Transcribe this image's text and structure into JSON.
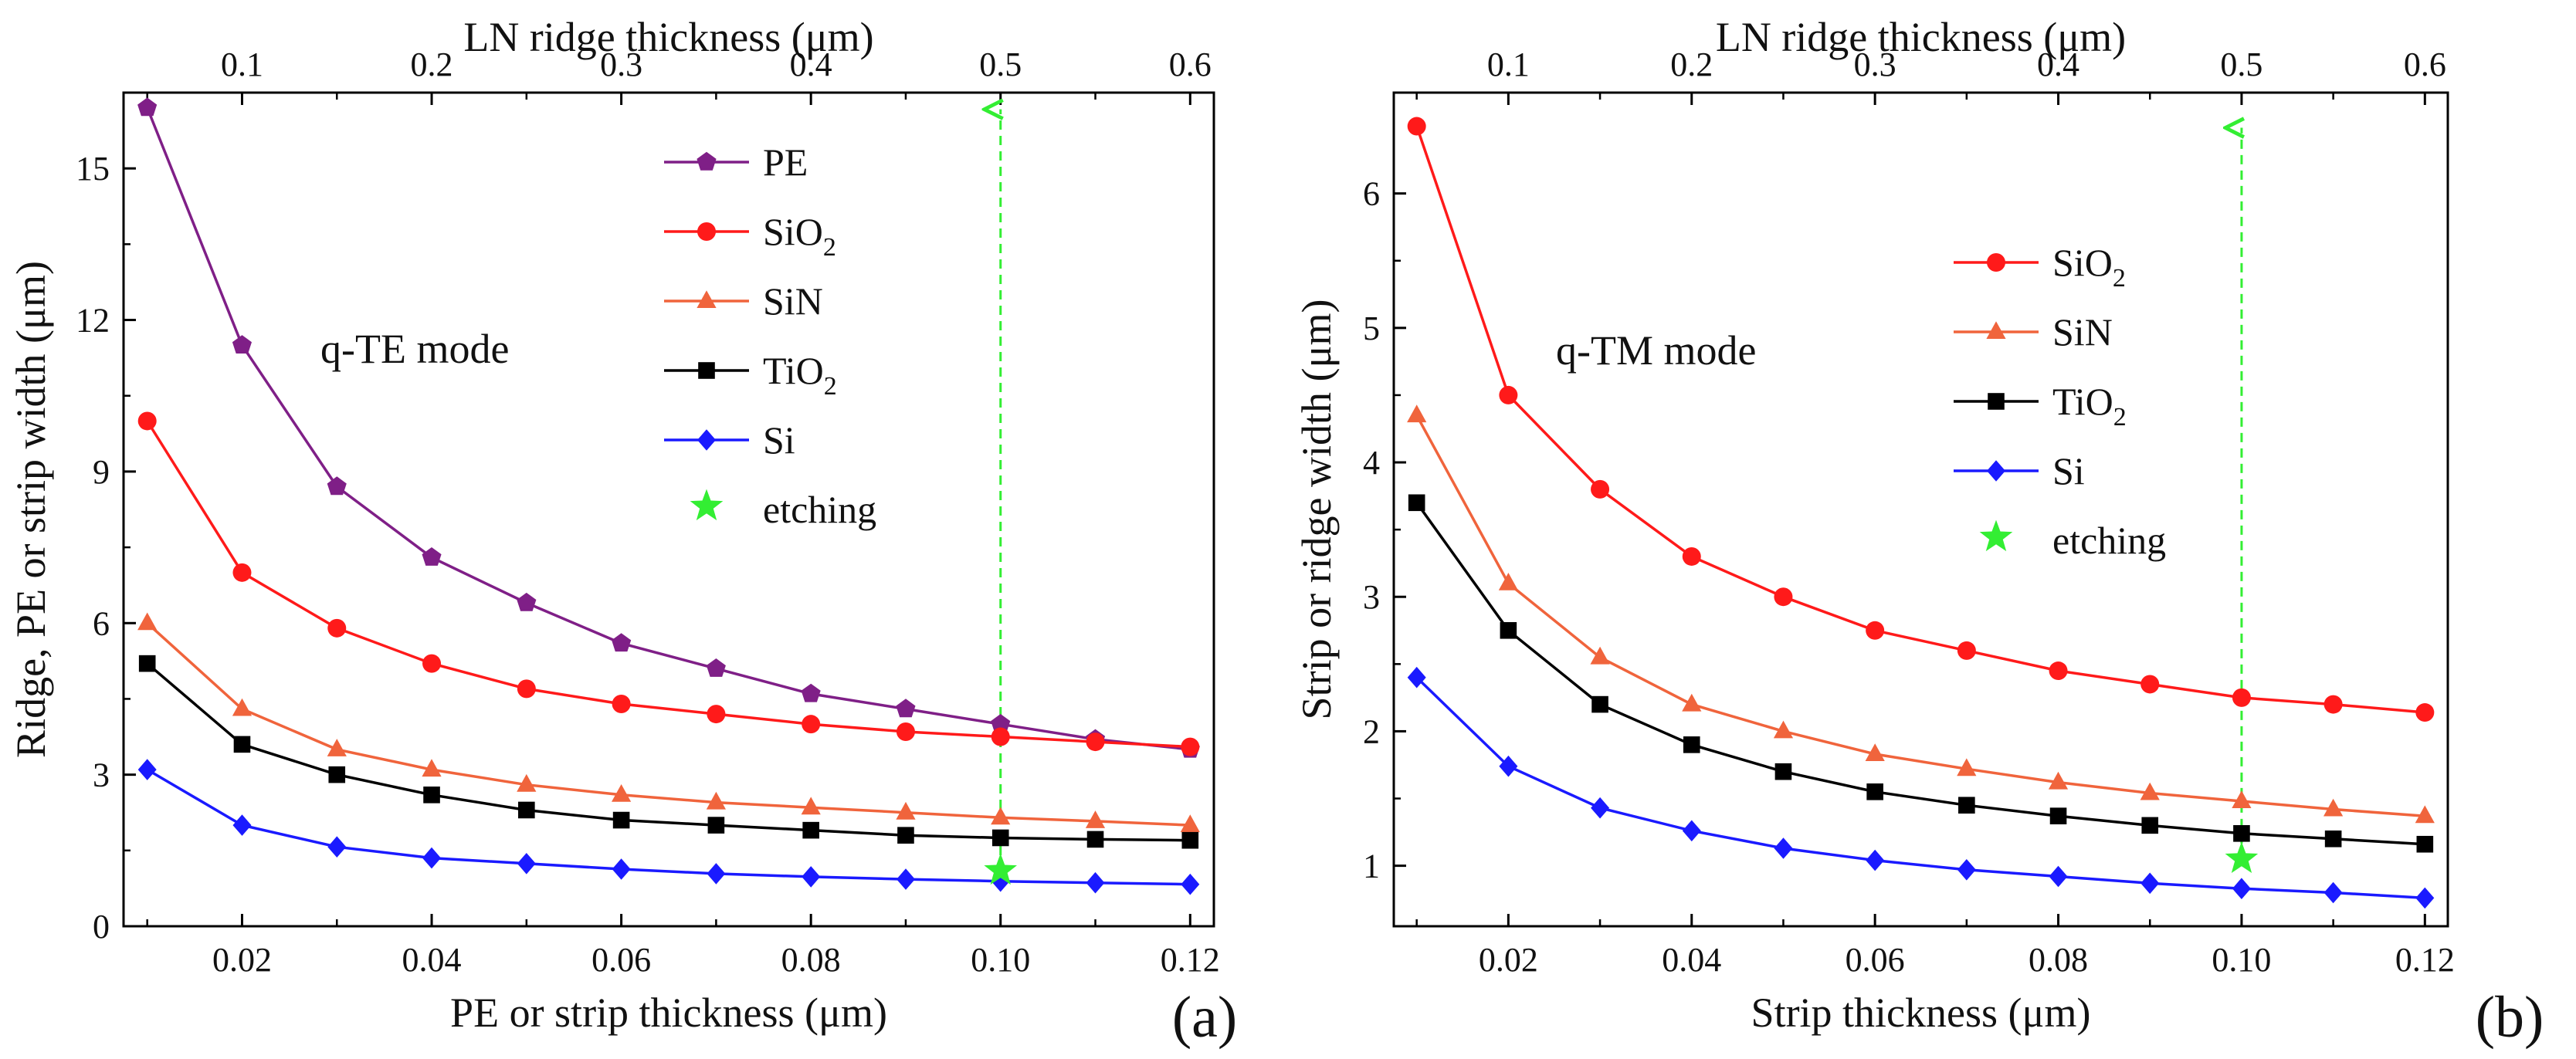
{
  "chart_data": [
    {
      "type": "line",
      "panel": "(a)",
      "mode_label": "q-TE mode",
      "xlabel": "PE or strip thickness (μm)",
      "ylabel": "Ridge, PE or strip width (μm)",
      "top_xlabel": "LN ridge thickness (μm)",
      "xlim": [
        0.0075,
        0.1225
      ],
      "ylim": [
        0,
        16.5
      ],
      "xticks": [
        0.02,
        0.04,
        0.06,
        0.08,
        0.1,
        0.12
      ],
      "xtick_labels": [
        "0.02",
        "0.04",
        "0.06",
        "0.08",
        "0.10",
        "0.12"
      ],
      "yticks": [
        0,
        3,
        6,
        9,
        12,
        15
      ],
      "ytick_labels": [
        "0",
        "3",
        "6",
        "9",
        "12",
        "15"
      ],
      "top_ticks": [
        "0.1",
        "0.2",
        "0.3",
        "0.4",
        "0.5",
        "0.6"
      ],
      "x": [
        0.01,
        0.02,
        0.03,
        0.04,
        0.05,
        0.06,
        0.07,
        0.08,
        0.09,
        0.1,
        0.11,
        0.12
      ],
      "series": [
        {
          "name": "PE",
          "sub": "",
          "color": "#7f1f87",
          "marker": "pentagon",
          "values": [
            16.2,
            11.5,
            8.7,
            7.3,
            6.4,
            5.6,
            5.1,
            4.6,
            4.3,
            4.0,
            3.7,
            3.5
          ]
        },
        {
          "name": "SiO",
          "sub": "2",
          "color": "#ff1a1a",
          "marker": "circle",
          "values": [
            10.0,
            7.0,
            5.9,
            5.2,
            4.7,
            4.4,
            4.2,
            4.0,
            3.85,
            3.75,
            3.65,
            3.55
          ]
        },
        {
          "name": "SiN",
          "sub": "",
          "color": "#f0643c",
          "marker": "triangle",
          "values": [
            6.0,
            4.3,
            3.5,
            3.1,
            2.8,
            2.6,
            2.45,
            2.35,
            2.25,
            2.15,
            2.08,
            2.0
          ]
        },
        {
          "name": "TiO",
          "sub": "2",
          "color": "#000000",
          "marker": "square",
          "values": [
            5.2,
            3.6,
            3.0,
            2.6,
            2.3,
            2.1,
            2.0,
            1.9,
            1.8,
            1.75,
            1.72,
            1.7
          ]
        },
        {
          "name": "Si",
          "sub": "",
          "color": "#1a1aff",
          "marker": "diamond",
          "values": [
            3.1,
            2.0,
            1.57,
            1.35,
            1.24,
            1.13,
            1.04,
            0.98,
            0.93,
            0.89,
            0.86,
            0.83
          ]
        }
      ],
      "etching": {
        "name": "etching",
        "color": "#33ee33",
        "x": 0.1,
        "y": 1.1,
        "arrow_to": 16.2
      }
    },
    {
      "type": "line",
      "panel": "(b)",
      "mode_label": "q-TM mode",
      "xlabel": "Strip  thickness (μm)",
      "ylabel": "Strip or ridge width (μm)",
      "top_xlabel": "LN ridge thickness (μm)",
      "xlim": [
        0.0075,
        0.1225
      ],
      "ylim": [
        0.55,
        6.75
      ],
      "xticks": [
        0.02,
        0.04,
        0.06,
        0.08,
        0.1,
        0.12
      ],
      "xtick_labels": [
        "0.02",
        "0.04",
        "0.06",
        "0.08",
        "0.10",
        "0.12"
      ],
      "yticks": [
        1,
        2,
        3,
        4,
        5,
        6
      ],
      "ytick_labels": [
        "1",
        "2",
        "3",
        "4",
        "5",
        "6"
      ],
      "top_ticks": [
        "0.1",
        "0.2",
        "0.3",
        "0.4",
        "0.5",
        "0.6"
      ],
      "x": [
        0.01,
        0.02,
        0.03,
        0.04,
        0.05,
        0.06,
        0.07,
        0.08,
        0.09,
        0.1,
        0.11,
        0.12
      ],
      "series": [
        {
          "name": "SiO",
          "sub": "2",
          "color": "#ff1a1a",
          "marker": "circle",
          "values": [
            6.5,
            4.5,
            3.8,
            3.3,
            3.0,
            2.75,
            2.6,
            2.45,
            2.35,
            2.25,
            2.2,
            2.14
          ]
        },
        {
          "name": "SiN",
          "sub": "",
          "color": "#f0643c",
          "marker": "triangle",
          "values": [
            4.35,
            3.1,
            2.55,
            2.2,
            2.0,
            1.83,
            1.72,
            1.62,
            1.54,
            1.48,
            1.42,
            1.37
          ]
        },
        {
          "name": "TiO",
          "sub": "2",
          "color": "#000000",
          "marker": "square",
          "values": [
            3.7,
            2.75,
            2.2,
            1.9,
            1.7,
            1.55,
            1.45,
            1.37,
            1.3,
            1.24,
            1.2,
            1.16
          ]
        },
        {
          "name": "Si",
          "sub": "",
          "color": "#1a1aff",
          "marker": "diamond",
          "values": [
            2.4,
            1.74,
            1.43,
            1.26,
            1.13,
            1.04,
            0.97,
            0.92,
            0.87,
            0.83,
            0.8,
            0.76
          ]
        }
      ],
      "etching": {
        "name": "etching",
        "color": "#33ee33",
        "x": 0.1,
        "y": 1.05,
        "arrow_to": 6.5
      }
    }
  ]
}
